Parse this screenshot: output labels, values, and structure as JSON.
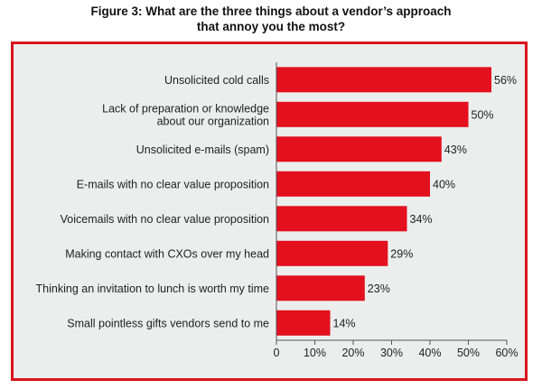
{
  "title_lines": [
    "Figure 3: What are the three things about a vendor’s approach",
    "that annoy you the most?"
  ],
  "colors": {
    "bar": "#e3101e",
    "frame": "#d7151f",
    "panel": "#eceded",
    "axis": "#555555"
  },
  "chart_data": {
    "type": "bar",
    "orientation": "horizontal",
    "title": "Figure 3: What are the three things about a vendor’s approach that annoy you the most?",
    "categories": [
      [
        "Unsolicited cold calls"
      ],
      [
        "Lack of preparation or knowledge",
        "about our organization"
      ],
      [
        "Unsolicited e-mails (spam)"
      ],
      [
        "E-mails with no clear value proposition"
      ],
      [
        "Voicemails with no clear value proposition"
      ],
      [
        "Making contact with CXOs over my head"
      ],
      [
        "Thinking an invitation to lunch is worth my time"
      ],
      [
        "Small pointless gifts vendors send to me"
      ]
    ],
    "values": [
      56,
      50,
      43,
      40,
      34,
      29,
      23,
      14
    ],
    "value_labels": [
      "56%",
      "50%",
      "43%",
      "40%",
      "34%",
      "29%",
      "23%",
      "14%"
    ],
    "xlim": [
      0,
      60
    ],
    "x_ticks": [
      0,
      10,
      20,
      30,
      40,
      50,
      60
    ],
    "x_tick_labels": [
      "0",
      "10%",
      "20%",
      "30%",
      "40%",
      "50%",
      "60%"
    ],
    "grid": false,
    "legend": "none"
  }
}
